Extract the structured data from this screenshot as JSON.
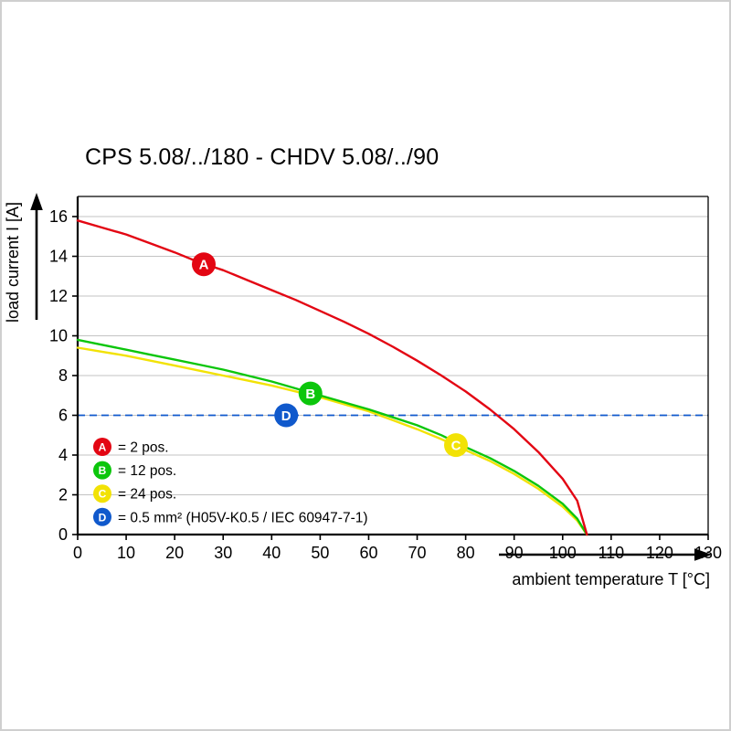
{
  "chart_data": {
    "type": "line",
    "title": "CPS 5.08/../180 - CHDV 5.08/../90",
    "xlabel": "ambient temperature T [°C]",
    "ylabel": "load current I [A]",
    "xlim": [
      0,
      130
    ],
    "ylim": [
      0,
      16
    ],
    "x_ticks": [
      0,
      10,
      20,
      30,
      40,
      50,
      60,
      70,
      80,
      90,
      100,
      110,
      120,
      130
    ],
    "y_ticks": [
      0,
      2,
      4,
      6,
      8,
      10,
      12,
      14,
      16
    ],
    "grid": "horizontal",
    "grid_color": "#c3c3c3",
    "axis_color": "#000000",
    "marker_text_color": "#ffffff",
    "reference_line": {
      "letter": "D",
      "y": 6,
      "style": "dashed",
      "color": "#1059cc",
      "marker_at": {
        "x": 43,
        "y": 6
      },
      "label": "= 0.5 mm² (H05V-K0.5 / IEC 60947-7-1)"
    },
    "series": [
      {
        "letter": "A",
        "label": "= 2 pos.",
        "color": "#e30613",
        "marker_at": {
          "x": 26,
          "y": 13.6
        },
        "points": [
          [
            0,
            15.8
          ],
          [
            5,
            15.45
          ],
          [
            10,
            15.1
          ],
          [
            15,
            14.65
          ],
          [
            20,
            14.2
          ],
          [
            25,
            13.7
          ],
          [
            30,
            13.3
          ],
          [
            35,
            12.8
          ],
          [
            40,
            12.3
          ],
          [
            45,
            11.8
          ],
          [
            50,
            11.25
          ],
          [
            55,
            10.7
          ],
          [
            60,
            10.1
          ],
          [
            65,
            9.45
          ],
          [
            70,
            8.75
          ],
          [
            75,
            8.0
          ],
          [
            80,
            7.2
          ],
          [
            85,
            6.3
          ],
          [
            90,
            5.3
          ],
          [
            95,
            4.15
          ],
          [
            100,
            2.8
          ],
          [
            103,
            1.7
          ],
          [
            105,
            0
          ]
        ]
      },
      {
        "letter": "B",
        "label": "= 12 pos.",
        "color": "#0cc60c",
        "marker_at": {
          "x": 48,
          "y": 7.1
        },
        "points": [
          [
            0,
            9.8
          ],
          [
            5,
            9.55
          ],
          [
            10,
            9.3
          ],
          [
            15,
            9.05
          ],
          [
            20,
            8.8
          ],
          [
            25,
            8.55
          ],
          [
            30,
            8.3
          ],
          [
            35,
            8.0
          ],
          [
            40,
            7.7
          ],
          [
            45,
            7.35
          ],
          [
            50,
            7.0
          ],
          [
            55,
            6.65
          ],
          [
            60,
            6.3
          ],
          [
            65,
            5.9
          ],
          [
            70,
            5.5
          ],
          [
            75,
            5.0
          ],
          [
            80,
            4.4
          ],
          [
            85,
            3.85
          ],
          [
            90,
            3.2
          ],
          [
            95,
            2.45
          ],
          [
            100,
            1.55
          ],
          [
            103,
            0.8
          ],
          [
            105,
            0
          ]
        ]
      },
      {
        "letter": "C",
        "label": "= 24 pos.",
        "color": "#f2e205",
        "marker_at": {
          "x": 78,
          "y": 4.5
        },
        "points": [
          [
            0,
            9.4
          ],
          [
            5,
            9.2
          ],
          [
            10,
            9.0
          ],
          [
            15,
            8.75
          ],
          [
            20,
            8.5
          ],
          [
            25,
            8.25
          ],
          [
            30,
            8.0
          ],
          [
            35,
            7.75
          ],
          [
            40,
            7.5
          ],
          [
            45,
            7.2
          ],
          [
            50,
            6.9
          ],
          [
            55,
            6.55
          ],
          [
            60,
            6.2
          ],
          [
            65,
            5.75
          ],
          [
            70,
            5.3
          ],
          [
            75,
            4.8
          ],
          [
            80,
            4.25
          ],
          [
            85,
            3.7
          ],
          [
            90,
            3.05
          ],
          [
            95,
            2.3
          ],
          [
            100,
            1.4
          ],
          [
            103,
            0.7
          ],
          [
            105,
            0
          ]
        ]
      }
    ],
    "legend": [
      {
        "letter": "A",
        "color": "#e30613",
        "label": "= 2 pos."
      },
      {
        "letter": "B",
        "color": "#0cc60c",
        "label": "= 12 pos."
      },
      {
        "letter": "C",
        "color": "#f2e205",
        "label": "= 24 pos."
      },
      {
        "letter": "D",
        "color": "#1059cc",
        "label": "= 0.5 mm² (H05V-K0.5 / IEC 60947-7-1)"
      }
    ]
  }
}
